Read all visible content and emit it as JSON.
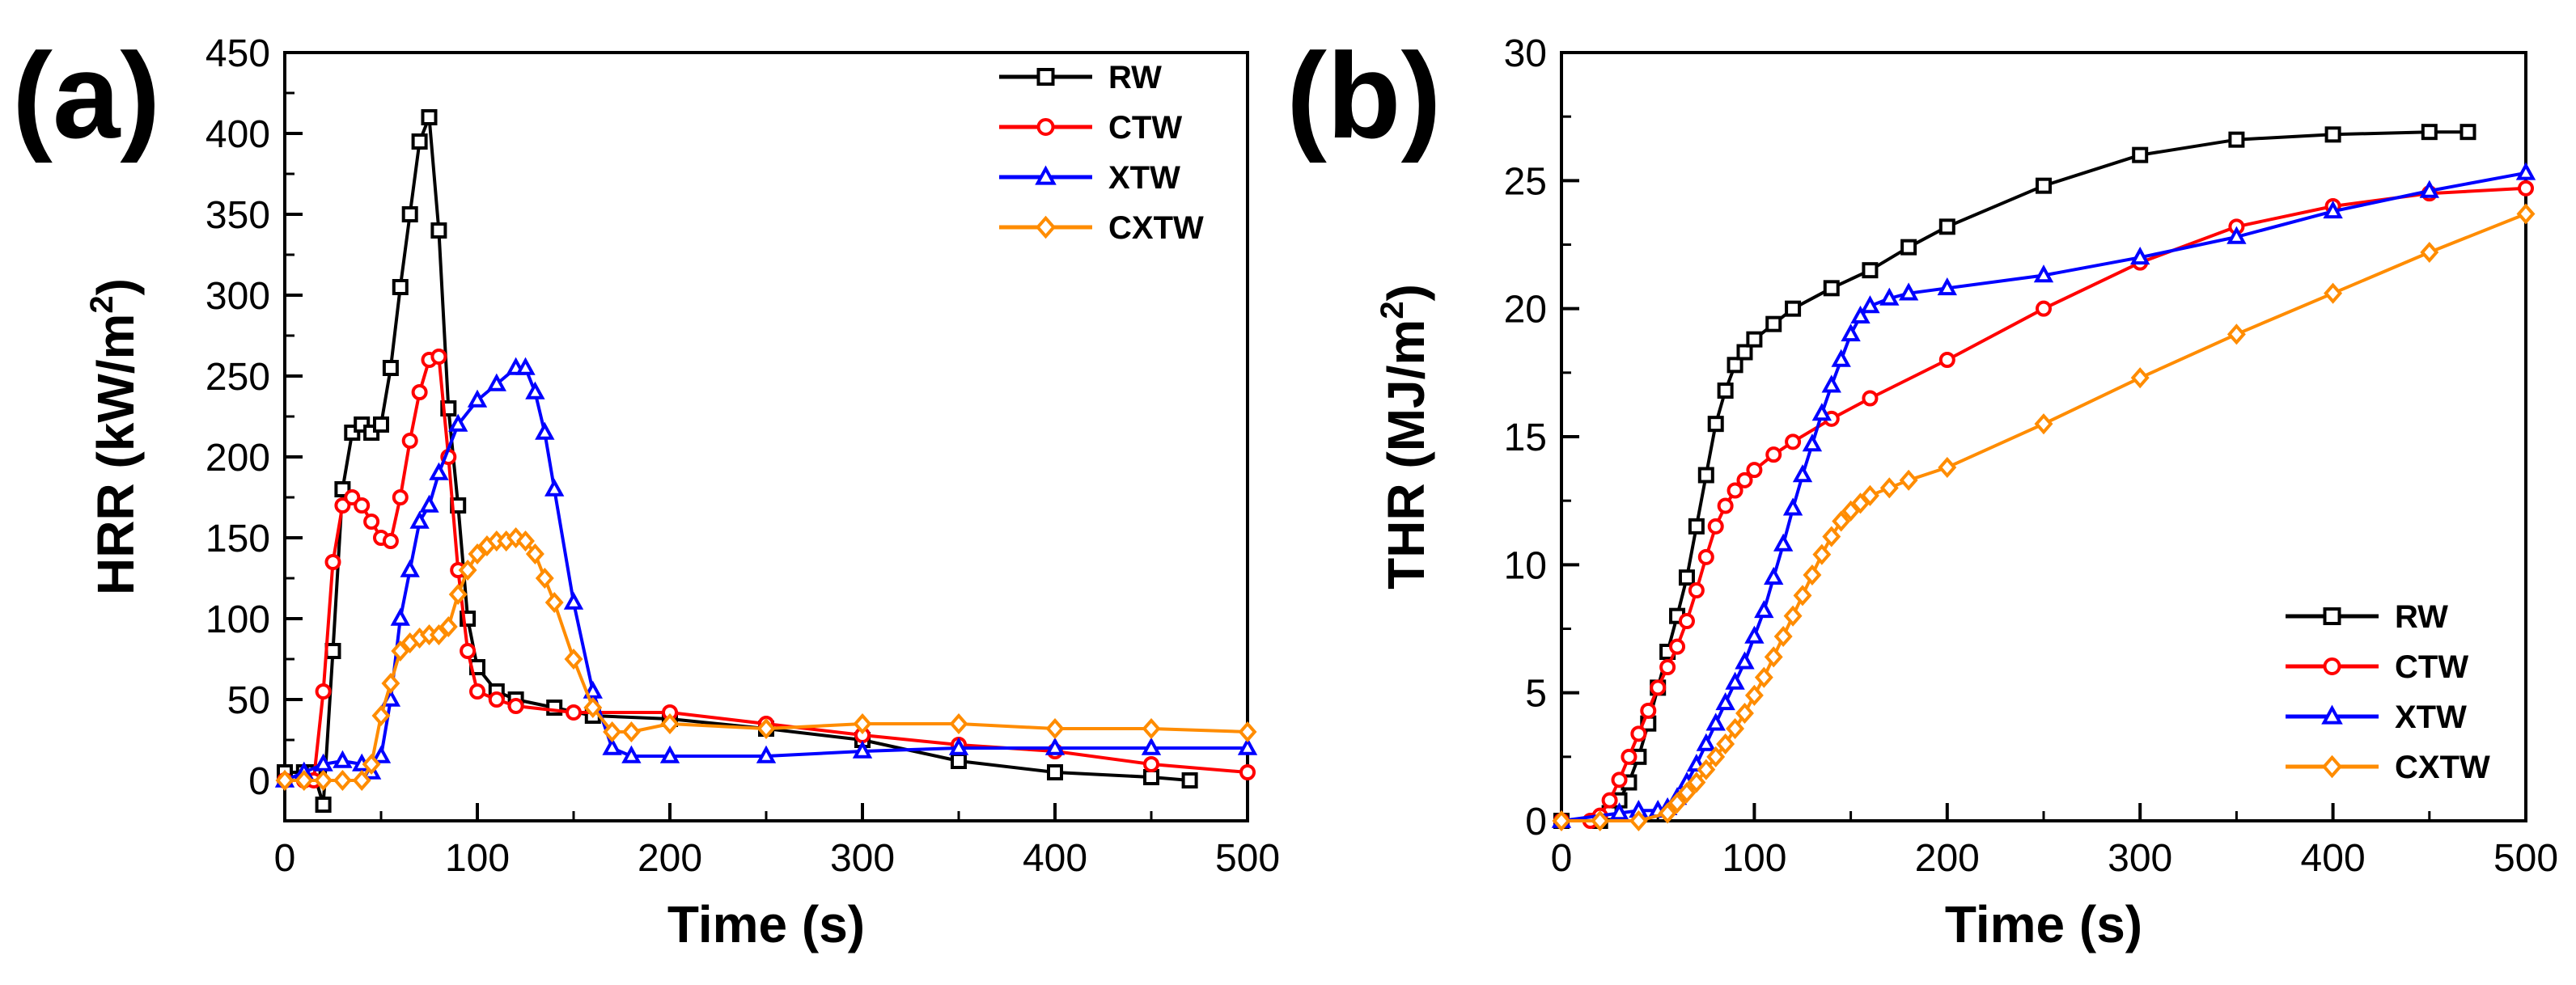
{
  "chart_data": [
    {
      "type": "line",
      "panel_label": "(a)",
      "xlabel": "Time (s)",
      "ylabel": "HRR (kW/m²)",
      "ylabel_parts": {
        "base": "HRR (kW/m",
        "sup": "2",
        "end": ")"
      },
      "xlim": [
        0,
        500
      ],
      "ylim": [
        -25,
        450
      ],
      "xticks": [
        0,
        100,
        200,
        300,
        400,
        500
      ],
      "yticks": [
        0,
        50,
        100,
        150,
        200,
        250,
        300,
        350,
        400,
        450
      ],
      "legend_position": "top-right",
      "series": [
        {
          "name": "RW",
          "color": "#000000",
          "marker": "square",
          "x": [
            0,
            10,
            15,
            20,
            25,
            30,
            35,
            40,
            45,
            50,
            55,
            60,
            65,
            70,
            75,
            80,
            85,
            90,
            95,
            100,
            110,
            120,
            140,
            160,
            200,
            250,
            300,
            350,
            400,
            450,
            470
          ],
          "y": [
            5,
            5,
            5,
            -15,
            80,
            180,
            215,
            220,
            215,
            220,
            255,
            305,
            350,
            395,
            410,
            340,
            230,
            170,
            100,
            70,
            55,
            50,
            45,
            40,
            38,
            32,
            25,
            12,
            5,
            2,
            0
          ]
        },
        {
          "name": "CTW",
          "color": "#ff0000",
          "marker": "circle",
          "x": [
            0,
            10,
            15,
            20,
            25,
            30,
            35,
            40,
            45,
            50,
            55,
            60,
            65,
            70,
            75,
            80,
            85,
            90,
            95,
            100,
            110,
            120,
            150,
            200,
            250,
            300,
            350,
            400,
            450,
            500
          ],
          "y": [
            0,
            0,
            0,
            55,
            135,
            170,
            175,
            170,
            160,
            150,
            148,
            175,
            210,
            240,
            260,
            262,
            200,
            130,
            80,
            55,
            50,
            46,
            42,
            42,
            35,
            28,
            22,
            18,
            10,
            5
          ]
        },
        {
          "name": "XTW",
          "color": "#0000ff",
          "marker": "triangle",
          "x": [
            0,
            10,
            20,
            30,
            40,
            45,
            50,
            55,
            60,
            65,
            70,
            75,
            80,
            90,
            100,
            110,
            120,
            125,
            130,
            135,
            140,
            150,
            160,
            170,
            180,
            200,
            250,
            300,
            350,
            400,
            450,
            500
          ],
          "y": [
            0,
            5,
            10,
            12,
            10,
            5,
            15,
            50,
            100,
            130,
            160,
            170,
            190,
            220,
            235,
            245,
            255,
            255,
            240,
            215,
            180,
            110,
            55,
            20,
            15,
            15,
            15,
            18,
            20,
            20,
            20,
            20
          ]
        },
        {
          "name": "CXTW",
          "color": "#ff8c00",
          "marker": "diamond",
          "x": [
            0,
            10,
            20,
            30,
            40,
            45,
            50,
            55,
            60,
            65,
            70,
            75,
            80,
            85,
            90,
            95,
            100,
            105,
            110,
            115,
            120,
            125,
            130,
            135,
            140,
            150,
            160,
            170,
            180,
            200,
            250,
            300,
            350,
            400,
            450,
            500
          ],
          "y": [
            0,
            0,
            0,
            0,
            0,
            10,
            40,
            60,
            80,
            85,
            88,
            90,
            90,
            95,
            115,
            130,
            140,
            145,
            148,
            148,
            150,
            148,
            140,
            125,
            110,
            75,
            45,
            30,
            30,
            35,
            32,
            35,
            35,
            32,
            32,
            30
          ]
        }
      ]
    },
    {
      "type": "line",
      "panel_label": "(b)",
      "xlabel": "Time (s)",
      "ylabel": "THR (MJ/m²)",
      "ylabel_parts": {
        "base": "THR (MJ/m",
        "sup": "2",
        "end": ")"
      },
      "xlim": [
        0,
        500
      ],
      "ylim": [
        0,
        30
      ],
      "xticks": [
        0,
        100,
        200,
        300,
        400,
        500
      ],
      "yticks": [
        0,
        5,
        10,
        15,
        20,
        25,
        30
      ],
      "legend_position": "bottom-right",
      "series": [
        {
          "name": "RW",
          "color": "#000000",
          "marker": "square",
          "x": [
            0,
            20,
            25,
            30,
            35,
            40,
            45,
            50,
            55,
            60,
            65,
            70,
            75,
            80,
            85,
            90,
            95,
            100,
            110,
            120,
            140,
            160,
            180,
            200,
            250,
            300,
            350,
            400,
            450,
            470
          ],
          "y": [
            0,
            0,
            0.3,
            0.8,
            1.5,
            2.5,
            3.8,
            5.2,
            6.6,
            8,
            9.5,
            11.5,
            13.5,
            15.5,
            16.8,
            17.8,
            18.3,
            18.8,
            19.4,
            20,
            20.8,
            21.5,
            22.4,
            23.2,
            24.8,
            26,
            26.6,
            26.8,
            26.9,
            26.9
          ]
        },
        {
          "name": "CTW",
          "color": "#ff0000",
          "marker": "circle",
          "x": [
            0,
            15,
            20,
            25,
            30,
            35,
            40,
            45,
            50,
            55,
            60,
            65,
            70,
            75,
            80,
            85,
            90,
            95,
            100,
            110,
            120,
            140,
            160,
            200,
            250,
            300,
            350,
            400,
            450,
            500
          ],
          "y": [
            0,
            0,
            0.2,
            0.8,
            1.6,
            2.5,
            3.4,
            4.3,
            5.2,
            6,
            6.8,
            7.8,
            9,
            10.3,
            11.5,
            12.3,
            12.9,
            13.3,
            13.7,
            14.3,
            14.8,
            15.7,
            16.5,
            18,
            20,
            21.8,
            23.2,
            24,
            24.5,
            24.7
          ]
        },
        {
          "name": "XTW",
          "color": "#0000ff",
          "marker": "triangle",
          "x": [
            0,
            30,
            40,
            50,
            55,
            60,
            65,
            70,
            75,
            80,
            85,
            90,
            95,
            100,
            105,
            110,
            115,
            120,
            125,
            130,
            135,
            140,
            145,
            150,
            155,
            160,
            170,
            180,
            200,
            250,
            300,
            350,
            400,
            450,
            500
          ],
          "y": [
            0,
            0.3,
            0.4,
            0.4,
            0.5,
            0.9,
            1.5,
            2.2,
            3,
            3.8,
            4.6,
            5.4,
            6.2,
            7.2,
            8.2,
            9.5,
            10.8,
            12.2,
            13.5,
            14.7,
            15.9,
            17,
            18,
            19,
            19.7,
            20.1,
            20.4,
            20.6,
            20.8,
            21.3,
            22,
            22.8,
            23.8,
            24.6,
            25.3
          ]
        },
        {
          "name": "CXTW",
          "color": "#ff8c00",
          "marker": "diamond",
          "x": [
            0,
            20,
            40,
            55,
            60,
            65,
            70,
            75,
            80,
            85,
            90,
            95,
            100,
            105,
            110,
            115,
            120,
            125,
            130,
            135,
            140,
            145,
            150,
            155,
            160,
            170,
            180,
            200,
            250,
            300,
            350,
            400,
            450,
            500
          ],
          "y": [
            0,
            0,
            0,
            0.3,
            0.7,
            1.1,
            1.5,
            2,
            2.5,
            3,
            3.6,
            4.2,
            4.9,
            5.6,
            6.4,
            7.2,
            8,
            8.8,
            9.6,
            10.4,
            11.1,
            11.7,
            12.1,
            12.4,
            12.7,
            13,
            13.3,
            13.8,
            15.5,
            17.3,
            19,
            20.6,
            22.2,
            23.7
          ]
        }
      ]
    }
  ]
}
